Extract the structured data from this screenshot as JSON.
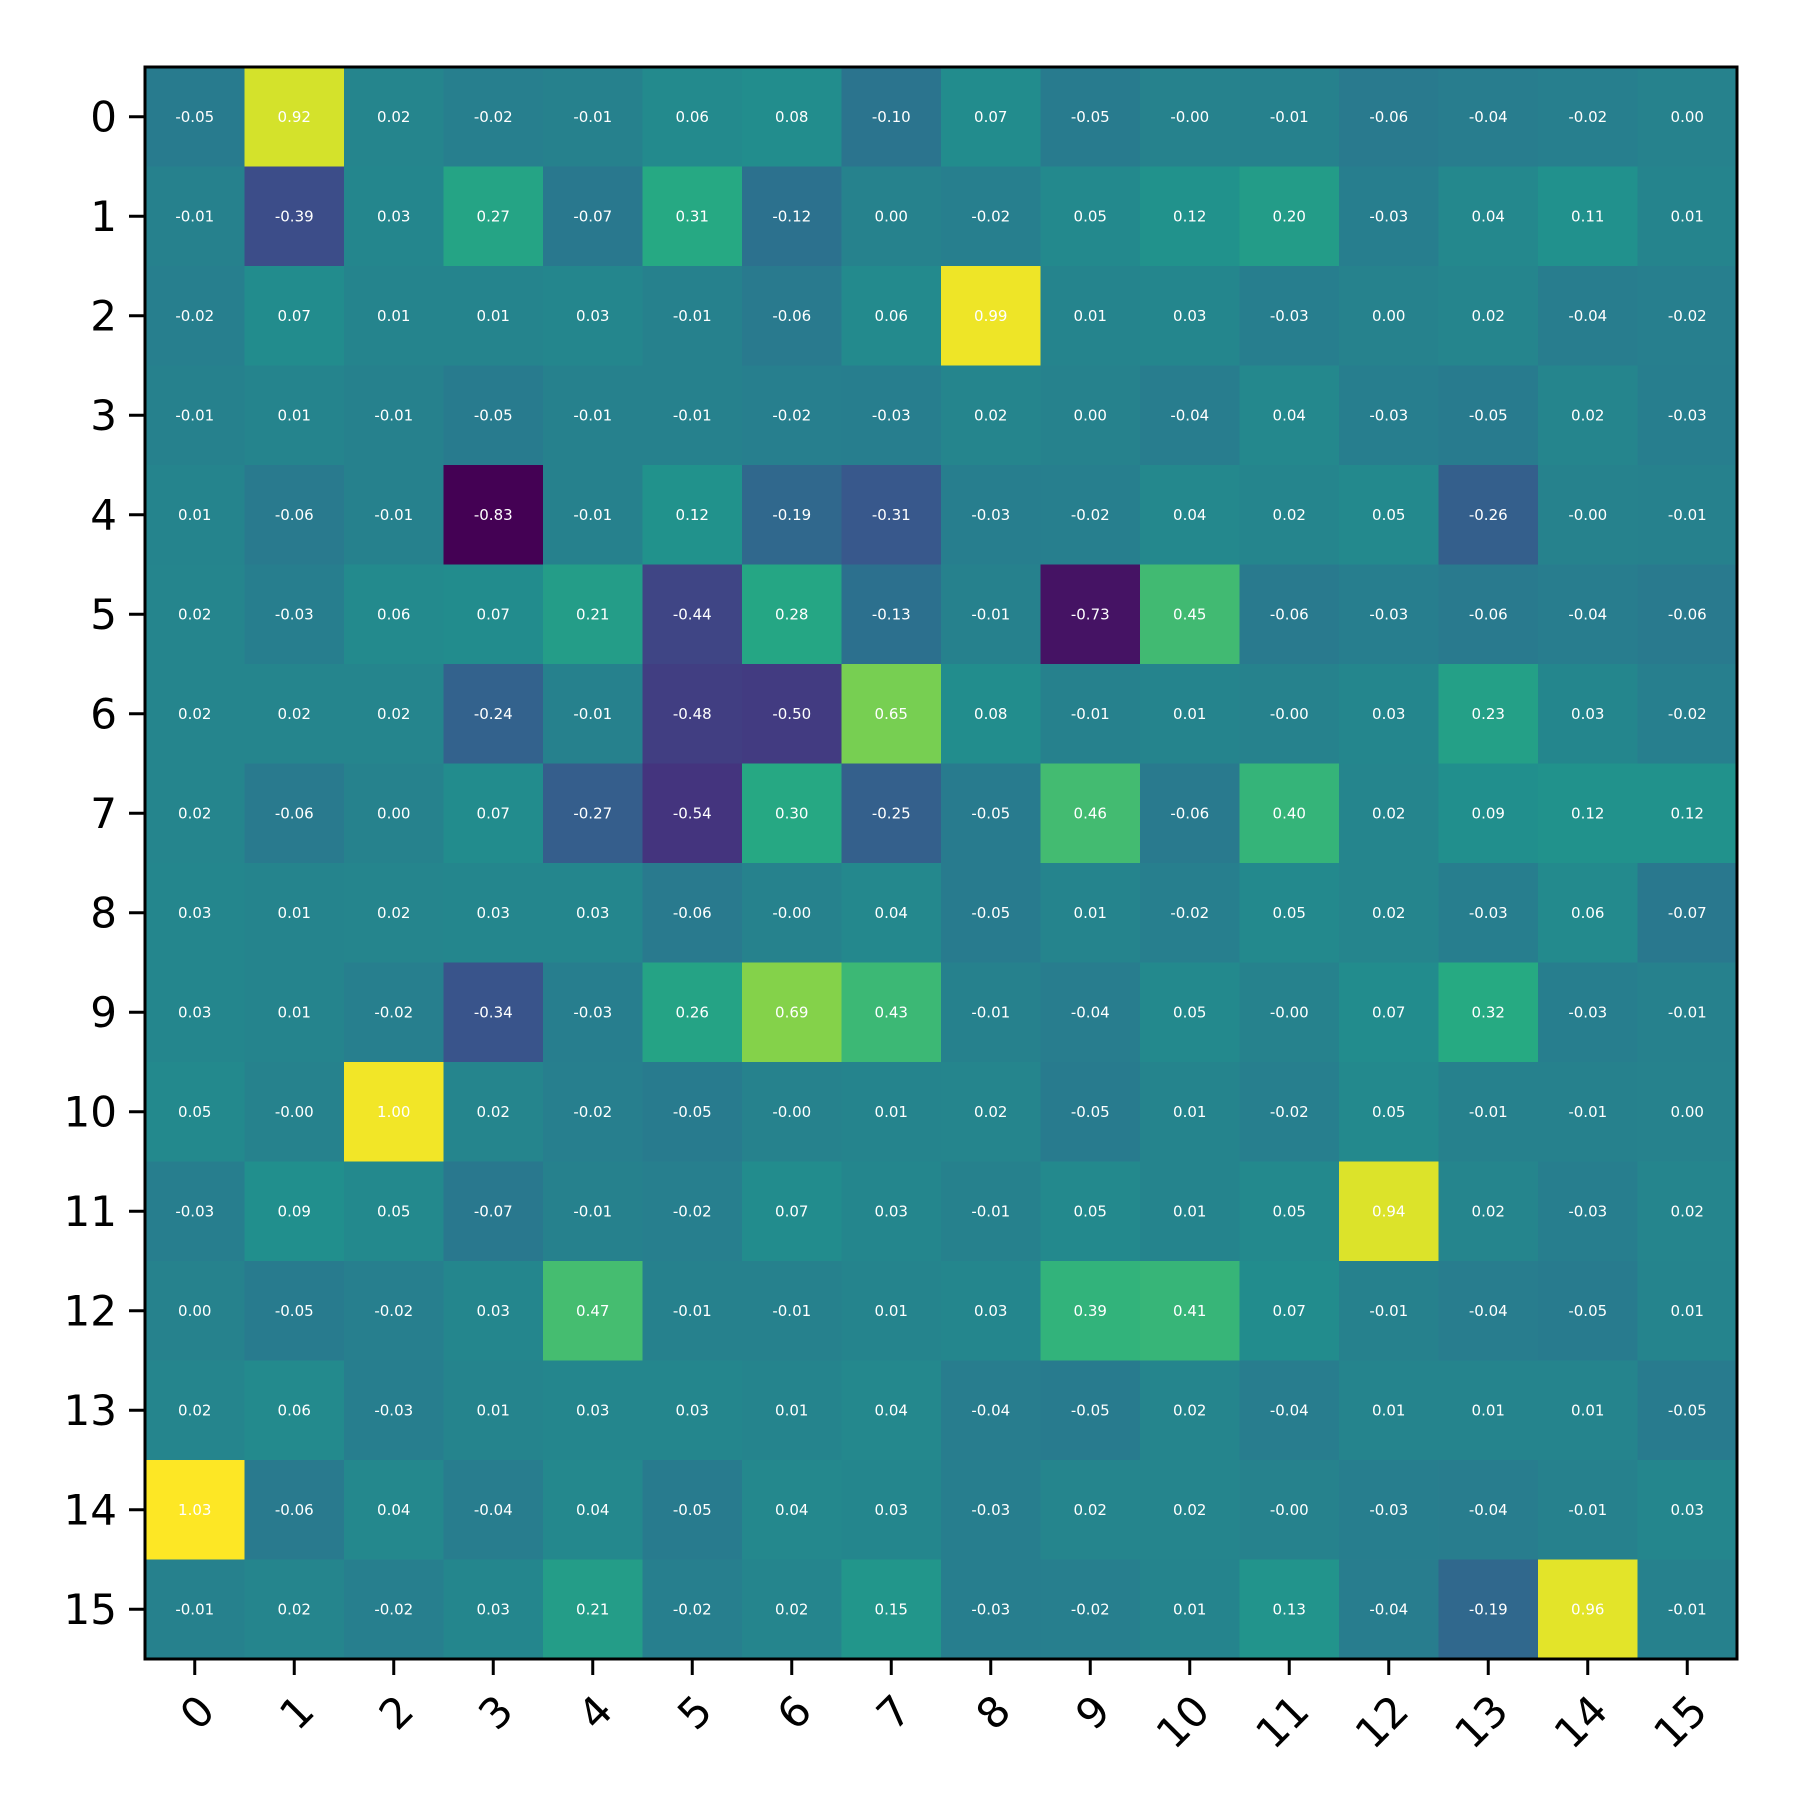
{
  "chart_data": {
    "type": "heatmap",
    "title": "",
    "xlabel": "",
    "ylabel": "",
    "colormap": "viridis",
    "vmin": -0.83,
    "vmax": 1.03,
    "grid": false,
    "x_categories": [
      "0",
      "1",
      "2",
      "3",
      "4",
      "5",
      "6",
      "7",
      "8",
      "9",
      "10",
      "11",
      "12",
      "13",
      "14",
      "15"
    ],
    "y_categories": [
      "0",
      "1",
      "2",
      "3",
      "4",
      "5",
      "6",
      "7",
      "8",
      "9",
      "10",
      "11",
      "12",
      "13",
      "14",
      "15"
    ],
    "values": [
      [
        -0.05,
        0.92,
        0.02,
        -0.02,
        -0.01,
        0.06,
        0.08,
        -0.1,
        0.07,
        -0.05,
        -0.0,
        -0.01,
        -0.06,
        -0.04,
        -0.02,
        0.0
      ],
      [
        -0.01,
        -0.39,
        0.03,
        0.27,
        -0.07,
        0.31,
        -0.12,
        0.0,
        -0.02,
        0.05,
        0.12,
        0.2,
        -0.03,
        0.04,
        0.11,
        0.01
      ],
      [
        -0.02,
        0.07,
        0.01,
        0.01,
        0.03,
        -0.01,
        -0.06,
        0.06,
        0.99,
        0.01,
        0.03,
        -0.03,
        0.0,
        0.02,
        -0.04,
        -0.02
      ],
      [
        -0.01,
        0.01,
        -0.01,
        -0.05,
        -0.01,
        -0.01,
        -0.02,
        -0.03,
        0.02,
        0.0,
        -0.04,
        0.04,
        -0.03,
        -0.05,
        0.02,
        -0.03
      ],
      [
        0.01,
        -0.06,
        -0.01,
        -0.83,
        -0.01,
        0.12,
        -0.19,
        -0.31,
        -0.03,
        -0.02,
        0.04,
        0.02,
        0.05,
        -0.26,
        -0.0,
        -0.01
      ],
      [
        0.02,
        -0.03,
        0.06,
        0.07,
        0.21,
        -0.44,
        0.28,
        -0.13,
        -0.01,
        -0.73,
        0.45,
        -0.06,
        -0.03,
        -0.06,
        -0.04,
        -0.06
      ],
      [
        0.02,
        0.02,
        0.02,
        -0.24,
        -0.01,
        -0.48,
        -0.5,
        0.65,
        0.08,
        -0.01,
        0.01,
        -0.0,
        0.03,
        0.23,
        0.03,
        -0.02
      ],
      [
        0.02,
        -0.06,
        0.0,
        0.07,
        -0.27,
        -0.54,
        0.3,
        -0.25,
        -0.05,
        0.46,
        -0.06,
        0.4,
        0.02,
        0.09,
        0.12,
        0.12
      ],
      [
        0.03,
        0.01,
        0.02,
        0.03,
        0.03,
        -0.06,
        -0.0,
        0.04,
        -0.05,
        0.01,
        -0.02,
        0.05,
        0.02,
        -0.03,
        0.06,
        -0.07
      ],
      [
        0.03,
        0.01,
        -0.02,
        -0.34,
        -0.03,
        0.26,
        0.69,
        0.43,
        -0.01,
        -0.04,
        0.05,
        -0.0,
        0.07,
        0.32,
        -0.03,
        -0.01
      ],
      [
        0.05,
        -0.0,
        1.0,
        0.02,
        -0.02,
        -0.05,
        -0.0,
        0.01,
        0.02,
        -0.05,
        0.01,
        -0.02,
        0.05,
        -0.01,
        -0.01,
        0.0
      ],
      [
        -0.03,
        0.09,
        0.05,
        -0.07,
        -0.01,
        -0.02,
        0.07,
        0.03,
        -0.01,
        0.05,
        0.01,
        0.05,
        0.94,
        0.02,
        -0.03,
        0.02
      ],
      [
        0.0,
        -0.05,
        -0.02,
        0.03,
        0.47,
        -0.01,
        -0.01,
        0.01,
        0.03,
        0.39,
        0.41,
        0.07,
        -0.01,
        -0.04,
        -0.05,
        0.01
      ],
      [
        0.02,
        0.06,
        -0.03,
        0.01,
        0.03,
        0.03,
        0.01,
        0.04,
        -0.04,
        -0.05,
        0.02,
        -0.04,
        0.01,
        0.01,
        0.01,
        -0.05
      ],
      [
        1.03,
        -0.06,
        0.04,
        -0.04,
        0.04,
        -0.05,
        0.04,
        0.03,
        -0.03,
        0.02,
        0.02,
        -0.0,
        -0.03,
        -0.04,
        -0.01,
        0.03
      ],
      [
        -0.01,
        0.02,
        -0.02,
        0.03,
        0.21,
        -0.02,
        0.02,
        0.15,
        -0.03,
        -0.02,
        0.01,
        0.13,
        -0.04,
        -0.19,
        0.96,
        -0.01
      ]
    ]
  }
}
